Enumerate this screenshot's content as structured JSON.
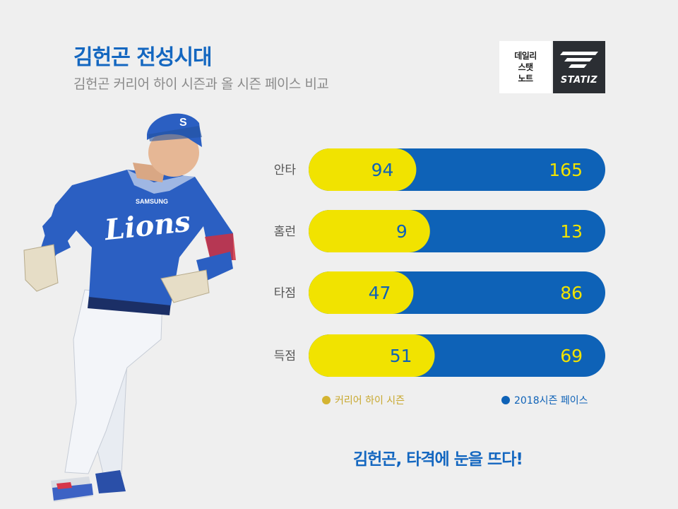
{
  "header": {
    "title": "김헌곤 전성시대",
    "subtitle": "김헌곤 커리어 하이 시즌과 올 시즌 페이스 비교"
  },
  "logo": {
    "daily_lines": [
      "데일리",
      "스탯",
      "노트"
    ],
    "brand": "STATIZ"
  },
  "photo": {
    "jersey_text": "Lions",
    "chest_text": "SAMSUNG",
    "helmet_text": "S"
  },
  "colors": {
    "title": "#1467c0",
    "career_high": "#f1e300",
    "pace_2018": "#0e62b7",
    "career_value_text": "#0e62b7",
    "pace_value_text": "#f1e300",
    "legend_career_dot": "#d4b431",
    "legend_pace_dot": "#0e62b7"
  },
  "chart_data": {
    "type": "bar",
    "orientation": "horizontal",
    "stacked": true,
    "categories": [
      "안타",
      "홈런",
      "타점",
      "득점"
    ],
    "series": [
      {
        "name": "커리어 하이 시즌",
        "values": [
          94,
          9,
          47,
          51
        ]
      },
      {
        "name": "2018시즌 페이스",
        "values": [
          165,
          13,
          86,
          69
        ]
      }
    ],
    "legend_position": "bottom",
    "grid": false
  },
  "tagline": "김헌곤, 타격에 눈을 뜨다!"
}
